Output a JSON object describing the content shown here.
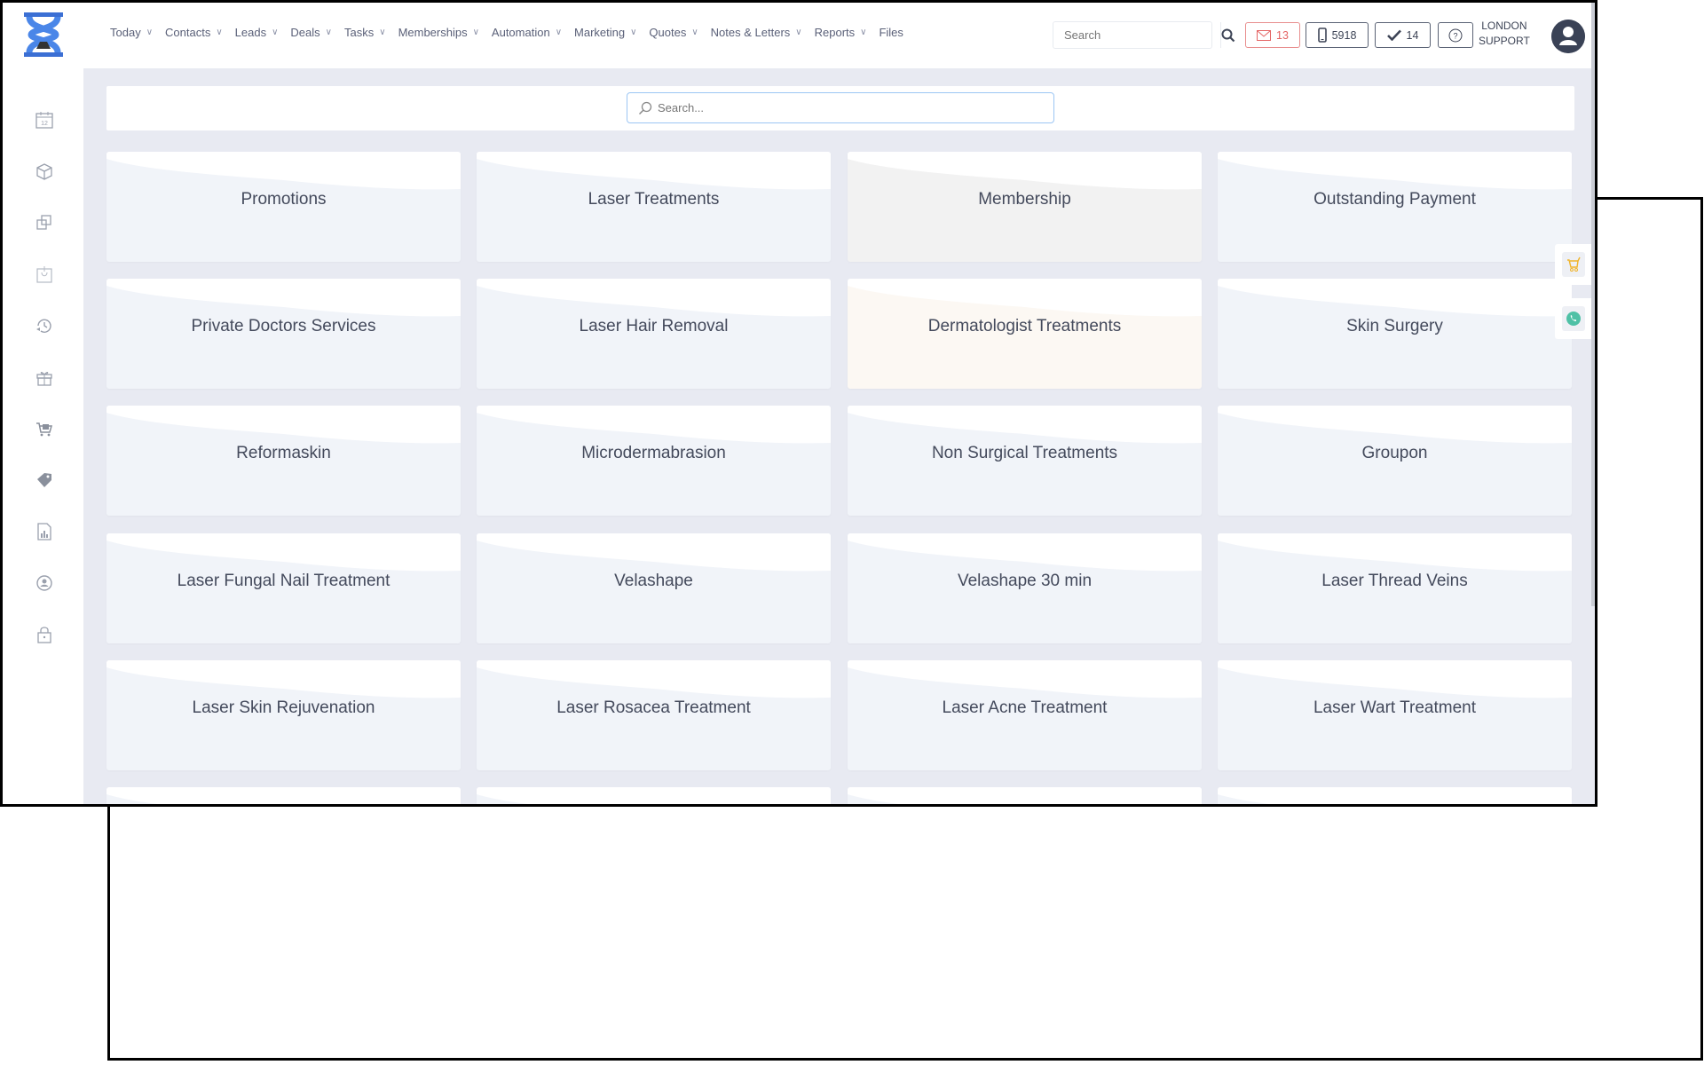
{
  "header": {
    "nav": [
      {
        "label": "Today",
        "dropdown": true
      },
      {
        "label": "Contacts",
        "dropdown": true
      },
      {
        "label": "Leads",
        "dropdown": true
      },
      {
        "label": "Deals",
        "dropdown": true
      },
      {
        "label": "Tasks",
        "dropdown": true
      },
      {
        "label": "Memberships",
        "dropdown": true
      },
      {
        "label": "Automation",
        "dropdown": true
      },
      {
        "label": "Marketing",
        "dropdown": true
      },
      {
        "label": "Quotes",
        "dropdown": true
      },
      {
        "label": "Notes & Letters",
        "dropdown": true
      },
      {
        "label": "Reports",
        "dropdown": true
      },
      {
        "label": "Files",
        "dropdown": false
      }
    ],
    "search_placeholder": "Search",
    "mail_count": "13",
    "sms_count": "5918",
    "tasks_count": "14",
    "user_line1": "LONDON",
    "user_line2": "SUPPORT"
  },
  "sidebar": {
    "icons": [
      "calendar-icon",
      "box-icon",
      "copy-icon",
      "basket-icon",
      "history-icon",
      "gift-icon",
      "cart-icon",
      "tag-icon",
      "report-icon",
      "user-circle-icon",
      "lock-icon"
    ]
  },
  "main": {
    "search_placeholder": "Search...",
    "categories": [
      {
        "label": "Promotions",
        "bg": "#f1f4f9"
      },
      {
        "label": "Laser Treatments",
        "bg": "#f1f4f9"
      },
      {
        "label": "Membership",
        "bg": "#f2f2f2"
      },
      {
        "label": "Outstanding Payment",
        "bg": "#f1f4f9"
      },
      {
        "label": "Private Doctors Services",
        "bg": "#f1f4f9"
      },
      {
        "label": "Laser Hair Removal",
        "bg": "#f1f4f9"
      },
      {
        "label": "Dermatologist Treatments",
        "bg": "#fcf8f3"
      },
      {
        "label": "Skin Surgery",
        "bg": "#f1f4f9"
      },
      {
        "label": "Reformaskin",
        "bg": "#f1f4f9"
      },
      {
        "label": "Microdermabrasion",
        "bg": "#f1f4f9"
      },
      {
        "label": "Non Surgical Treatments",
        "bg": "#f1f4f9"
      },
      {
        "label": "Groupon",
        "bg": "#f1f4f9"
      },
      {
        "label": "Laser Fungal Nail Treatment",
        "bg": "#f1f4f9"
      },
      {
        "label": "Velashape",
        "bg": "#f1f4f9"
      },
      {
        "label": "Velashape 30 min",
        "bg": "#f1f4f9"
      },
      {
        "label": "Laser Thread Veins",
        "bg": "#f1f4f9"
      },
      {
        "label": "Laser Skin Rejuvenation",
        "bg": "#f1f4f9"
      },
      {
        "label": "Laser Rosacea Treatment",
        "bg": "#f1f4f9"
      },
      {
        "label": "Laser Acne Treatment",
        "bg": "#f1f4f9"
      },
      {
        "label": "Laser Wart Treatment",
        "bg": "#f1f4f9"
      },
      {
        "label": "",
        "bg": "#f1f4f9"
      },
      {
        "label": "",
        "bg": "#f1f4f9"
      },
      {
        "label": "",
        "bg": "#f1f4f9"
      },
      {
        "label": "",
        "bg": "#f1f4f9"
      }
    ]
  },
  "floating": {
    "cart_color": "#f0b429",
    "whatsapp_color": "#4fc1a6"
  },
  "colors": {
    "brand": "#3b6fd4",
    "mail": "#e46464",
    "text": "#444a5c"
  }
}
